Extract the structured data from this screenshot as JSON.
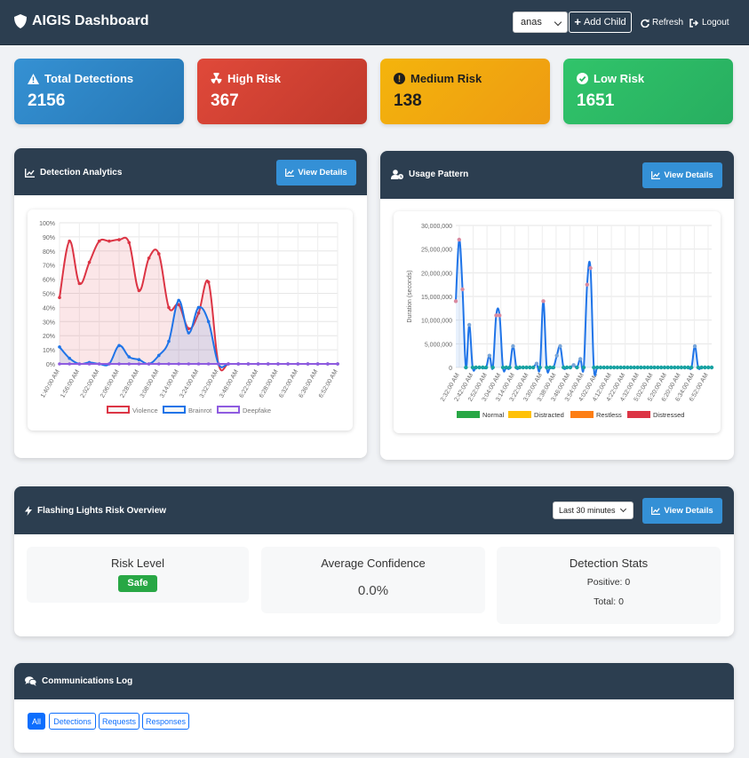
{
  "navbar": {
    "title": "AIGIS Dashboard",
    "child_select": "anas",
    "add_child": "Add Child",
    "refresh": "Refresh",
    "logout": "Logout"
  },
  "stats": {
    "total": {
      "label": "Total Detections",
      "value": "2156",
      "icon": "warning-triangle-icon",
      "color": "#2c86c9"
    },
    "high": {
      "label": "High Risk",
      "value": "367",
      "icon": "radiation-icon",
      "color": "#d13f30"
    },
    "medium": {
      "label": "Medium Risk",
      "value": "138",
      "icon": "exclamation-circle-icon",
      "color": "#f2a70f"
    },
    "low": {
      "label": "Low Risk",
      "value": "1651",
      "icon": "check-circle-icon",
      "color": "#2cb964"
    }
  },
  "detection_panel": {
    "title": "Detection Analytics",
    "view_details": "View Details"
  },
  "usage_panel": {
    "title": "Usage Pattern",
    "view_details": "View Details"
  },
  "flashing_panel": {
    "title": "Flashing Lights Risk Overview",
    "time_range": "Last 30 minutes",
    "view_details": "View Details",
    "risk_level_title": "Risk Level",
    "risk_level_value": "Safe",
    "avg_conf_title": "Average Confidence",
    "avg_conf_value": "0.0%",
    "stats_title": "Detection Stats",
    "positive": "Positive: 0",
    "total": "Total: 0"
  },
  "comms_panel": {
    "title": "Communications Log",
    "filters": [
      "All",
      "Detections",
      "Requests",
      "Responses"
    ]
  },
  "chart_data": [
    {
      "type": "line",
      "y_ticks": [
        "0%",
        "10%",
        "20%",
        "30%",
        "40%",
        "50%",
        "60%",
        "70%",
        "80%",
        "90%",
        "100%"
      ],
      "ylim": [
        0,
        100
      ],
      "x_tick_labels": [
        "1:40:00 AM",
        "1:56:00 AM",
        "2:02:00 AM",
        "2:06:00 AM",
        "2:28:00 AM",
        "3:08:00 AM",
        "3:14:00 AM",
        "3:24:00 AM",
        "3:32:00 AM",
        "3:48:00 AM",
        "6:22:00 AM",
        "6:28:00 AM",
        "6:32:00 AM",
        "6:36:00 AM",
        "6:52:00 AM"
      ],
      "legend_position": "bottom",
      "series": [
        {
          "name": "Violence",
          "color": "#dc3545",
          "values": [
            47,
            87,
            57,
            72,
            87,
            87,
            88,
            86,
            52,
            75,
            78,
            40,
            42,
            25,
            36,
            58,
            0,
            0,
            0,
            0,
            0,
            0,
            0,
            0,
            0,
            0,
            0,
            0,
            0
          ]
        },
        {
          "name": "Brainrot",
          "color": "#1f74e8",
          "values": [
            12,
            4,
            0,
            1,
            0,
            0,
            13,
            5,
            3,
            0,
            6,
            16,
            45,
            22,
            40,
            30,
            0,
            0,
            0,
            0,
            0,
            0,
            0,
            0,
            0,
            0,
            0,
            0,
            0
          ]
        },
        {
          "name": "Deepfake",
          "color": "#8e5be0",
          "values": [
            0,
            0,
            0,
            0,
            0,
            0,
            0,
            0,
            0,
            0,
            0,
            0,
            0,
            0,
            0,
            0,
            0,
            0,
            0,
            0,
            0,
            0,
            0,
            0,
            0,
            0,
            0,
            0,
            0
          ]
        }
      ]
    },
    {
      "type": "line",
      "ylabel": "Duration (seconds)",
      "y_ticks": [
        "0",
        "5,000,000",
        "10,000,000",
        "15,000,000",
        "20,000,000",
        "25,000,000",
        "30,000,000"
      ],
      "ylim": [
        0,
        30000000
      ],
      "x_tick_labels": [
        "2:32:00 AM",
        "2:42:00 AM",
        "2:52:00 AM",
        "3:04:00 AM",
        "3:14:00 AM",
        "3:22:00 AM",
        "3:30:00 AM",
        "3:38:00 AM",
        "3:46:00 AM",
        "3:54:00 AM",
        "4:02:00 AM",
        "4:12:00 AM",
        "4:22:00 AM",
        "4:32:00 AM",
        "5:02:00 AM",
        "5:20:00 AM",
        "6:20:00 AM",
        "6:34:00 AM",
        "6:52:00 AM"
      ],
      "legend_position": "bottom",
      "legend": [
        {
          "name": "Normal",
          "color": "#28a745"
        },
        {
          "name": "Distracted",
          "color": "#ffc107"
        },
        {
          "name": "Restless",
          "color": "#fd7e14"
        },
        {
          "name": "Distressed",
          "color": "#dc3545"
        }
      ],
      "series": [
        {
          "name": "Duration",
          "color": "#1f74e8",
          "values": [
            14000000,
            27000000,
            16500000,
            0,
            9000000,
            0,
            0,
            0,
            0,
            0,
            2500000,
            0,
            11000000,
            11000000,
            0,
            0,
            0,
            4500000,
            0,
            0,
            0,
            0,
            0,
            0,
            800000,
            0,
            14000000,
            0,
            0,
            0,
            2500000,
            4500000,
            0,
            0,
            0,
            500000,
            0,
            1800000,
            0,
            17500000,
            21000000,
            0,
            0,
            0,
            0,
            0,
            0,
            0,
            0,
            0,
            0,
            0,
            0,
            0,
            0,
            0,
            0,
            0,
            0,
            0,
            0,
            0,
            0,
            0,
            0,
            0,
            0,
            0,
            0,
            0,
            0,
            4500000,
            0,
            0,
            0,
            0,
            0
          ]
        }
      ]
    }
  ]
}
